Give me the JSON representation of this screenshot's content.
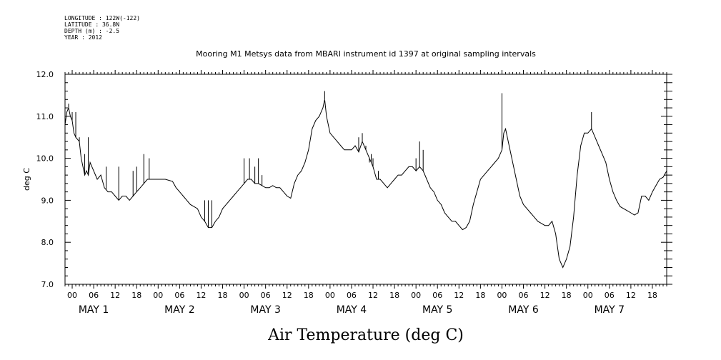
{
  "header": {
    "lines": [
      "LONGITUDE : 122W(-122)",
      "LATITUDE : 36.8N",
      "DEPTH (m) : -2.5",
      "YEAR : 2012"
    ]
  },
  "chart_data": {
    "type": "line",
    "title": "Mooring M1 Metsys data from MBARI instrument id 1397 at original sampling intervals",
    "xlabel": "Air Temperature (deg C)",
    "ylabel": "deg C",
    "ylim": [
      7.0,
      12.0
    ],
    "yticks": [
      "7.0",
      "8.0",
      "9.0",
      "10.0",
      "11.0",
      "12.0"
    ],
    "xlim_hours": [
      -2,
      166
    ],
    "hour_labels": [
      "00",
      "06",
      "12",
      "18"
    ],
    "day_labels": [
      "MAY   1",
      "MAY   2",
      "MAY   3",
      "MAY   4",
      "MAY   5",
      "MAY   6",
      "MAY   7"
    ],
    "grid": false,
    "series": [
      {
        "points": [
          [
            -2,
            10.8
          ],
          [
            -1.5,
            11.1
          ],
          [
            -1,
            11.2
          ],
          [
            -0.5,
            11.0
          ],
          [
            0,
            10.9
          ],
          [
            0.5,
            10.6
          ],
          [
            1,
            10.5
          ],
          [
            2,
            10.4
          ],
          [
            2.5,
            10.0
          ],
          [
            3,
            9.8
          ],
          [
            3.5,
            9.6
          ],
          [
            4,
            9.7
          ],
          [
            4.5,
            9.6
          ],
          [
            5,
            9.9
          ],
          [
            6,
            9.7
          ],
          [
            7,
            9.5
          ],
          [
            8,
            9.6
          ],
          [
            9,
            9.3
          ],
          [
            10,
            9.2
          ],
          [
            11,
            9.2
          ],
          [
            12,
            9.1
          ],
          [
            13,
            9.0
          ],
          [
            14,
            9.1
          ],
          [
            15,
            9.1
          ],
          [
            16,
            9.0
          ],
          [
            17,
            9.1
          ],
          [
            18,
            9.2
          ],
          [
            19,
            9.3
          ],
          [
            20,
            9.4
          ],
          [
            21,
            9.5
          ],
          [
            22,
            9.5
          ],
          [
            23,
            9.5
          ],
          [
            24,
            9.5
          ],
          [
            26,
            9.5
          ],
          [
            28,
            9.45
          ],
          [
            29,
            9.3
          ],
          [
            30,
            9.2
          ],
          [
            31,
            9.1
          ],
          [
            32,
            9.0
          ],
          [
            33,
            8.9
          ],
          [
            34,
            8.85
          ],
          [
            35,
            8.8
          ],
          [
            36,
            8.6
          ],
          [
            37,
            8.5
          ],
          [
            38,
            8.35
          ],
          [
            39,
            8.35
          ],
          [
            40,
            8.5
          ],
          [
            41,
            8.6
          ],
          [
            42,
            8.8
          ],
          [
            43,
            8.9
          ],
          [
            44,
            9.0
          ],
          [
            45,
            9.1
          ],
          [
            46,
            9.2
          ],
          [
            47,
            9.3
          ],
          [
            48,
            9.4
          ],
          [
            49,
            9.5
          ],
          [
            50,
            9.5
          ],
          [
            51,
            9.4
          ],
          [
            52,
            9.4
          ],
          [
            53,
            9.35
          ],
          [
            54,
            9.3
          ],
          [
            55,
            9.3
          ],
          [
            56,
            9.35
          ],
          [
            57,
            9.3
          ],
          [
            58,
            9.3
          ],
          [
            59,
            9.2
          ],
          [
            60,
            9.1
          ],
          [
            61,
            9.05
          ],
          [
            62,
            9.4
          ],
          [
            63,
            9.6
          ],
          [
            64,
            9.7
          ],
          [
            65,
            9.9
          ],
          [
            66,
            10.2
          ],
          [
            67,
            10.7
          ],
          [
            68,
            10.9
          ],
          [
            69,
            11.0
          ],
          [
            70,
            11.2
          ],
          [
            70.5,
            11.4
          ],
          [
            71,
            11.0
          ],
          [
            72,
            10.6
          ],
          [
            73,
            10.5
          ],
          [
            74,
            10.4
          ],
          [
            75,
            10.3
          ],
          [
            76,
            10.2
          ],
          [
            77,
            10.2
          ],
          [
            78,
            10.2
          ],
          [
            79,
            10.3
          ],
          [
            80,
            10.15
          ],
          [
            81,
            10.4
          ],
          [
            82,
            10.2
          ],
          [
            83,
            10.0
          ],
          [
            84,
            9.8
          ],
          [
            85,
            9.5
          ],
          [
            86,
            9.5
          ],
          [
            87,
            9.4
          ],
          [
            88,
            9.3
          ],
          [
            89,
            9.4
          ],
          [
            90,
            9.5
          ],
          [
            91,
            9.6
          ],
          [
            92,
            9.6
          ],
          [
            93,
            9.7
          ],
          [
            94,
            9.8
          ],
          [
            95,
            9.8
          ],
          [
            96,
            9.7
          ],
          [
            97,
            9.8
          ],
          [
            98,
            9.7
          ],
          [
            99,
            9.5
          ],
          [
            100,
            9.3
          ],
          [
            101,
            9.2
          ],
          [
            102,
            9.0
          ],
          [
            103,
            8.9
          ],
          [
            104,
            8.7
          ],
          [
            105,
            8.6
          ],
          [
            106,
            8.5
          ],
          [
            107,
            8.5
          ],
          [
            108,
            8.4
          ],
          [
            109,
            8.3
          ],
          [
            110,
            8.35
          ],
          [
            111,
            8.5
          ],
          [
            112,
            8.9
          ],
          [
            113,
            9.2
          ],
          [
            114,
            9.5
          ],
          [
            115,
            9.6
          ],
          [
            116,
            9.7
          ],
          [
            117,
            9.8
          ],
          [
            118,
            9.9
          ],
          [
            119,
            10.0
          ],
          [
            120,
            10.2
          ],
          [
            120.5,
            10.6
          ],
          [
            121,
            10.7
          ],
          [
            122,
            10.3
          ],
          [
            123,
            9.9
          ],
          [
            124,
            9.5
          ],
          [
            125,
            9.1
          ],
          [
            126,
            8.9
          ],
          [
            127,
            8.8
          ],
          [
            128,
            8.7
          ],
          [
            129,
            8.6
          ],
          [
            130,
            8.5
          ],
          [
            131,
            8.45
          ],
          [
            132,
            8.4
          ],
          [
            133,
            8.4
          ],
          [
            134,
            8.5
          ],
          [
            135,
            8.2
          ],
          [
            136,
            7.6
          ],
          [
            137,
            7.4
          ],
          [
            138,
            7.6
          ],
          [
            139,
            7.9
          ],
          [
            140,
            8.6
          ],
          [
            141,
            9.6
          ],
          [
            142,
            10.3
          ],
          [
            143,
            10.6
          ],
          [
            144,
            10.6
          ],
          [
            145,
            10.7
          ],
          [
            146,
            10.5
          ],
          [
            147,
            10.3
          ],
          [
            148,
            10.1
          ],
          [
            149,
            9.9
          ],
          [
            150,
            9.5
          ],
          [
            151,
            9.2
          ],
          [
            152,
            9.0
          ],
          [
            153,
            8.85
          ],
          [
            154,
            8.8
          ],
          [
            155,
            8.75
          ],
          [
            156,
            8.7
          ],
          [
            157,
            8.65
          ],
          [
            158,
            8.7
          ],
          [
            159,
            9.1
          ],
          [
            160,
            9.1
          ],
          [
            161,
            9.0
          ],
          [
            162,
            9.2
          ],
          [
            163,
            9.35
          ],
          [
            164,
            9.5
          ],
          [
            165,
            9.55
          ],
          [
            166,
            9.7
          ]
        ],
        "spikes": [
          [
            -1,
            11.3
          ],
          [
            0,
            11.1
          ],
          [
            0.5,
            10.6
          ],
          [
            1,
            11.1
          ],
          [
            2,
            10.5
          ],
          [
            3.5,
            10.1
          ],
          [
            4.5,
            10.5
          ],
          [
            9.5,
            9.8
          ],
          [
            13,
            9.8
          ],
          [
            17,
            9.7
          ],
          [
            18,
            9.8
          ],
          [
            20,
            10.1
          ],
          [
            21.5,
            10.0
          ],
          [
            37,
            9.0
          ],
          [
            38,
            9.0
          ],
          [
            39,
            9.0
          ],
          [
            48,
            10.0
          ],
          [
            49.5,
            10.0
          ],
          [
            51,
            9.8
          ],
          [
            52,
            10.0
          ],
          [
            53,
            9.6
          ],
          [
            70.5,
            11.6
          ],
          [
            80,
            10.5
          ],
          [
            81,
            10.6
          ],
          [
            82,
            10.3
          ],
          [
            83,
            9.9
          ],
          [
            83.5,
            10.1
          ],
          [
            84,
            10.0
          ],
          [
            85.5,
            9.7
          ],
          [
            96,
            10.0
          ],
          [
            97,
            10.4
          ],
          [
            98,
            10.2
          ],
          [
            120,
            11.55
          ],
          [
            145,
            11.1
          ]
        ]
      }
    ]
  }
}
